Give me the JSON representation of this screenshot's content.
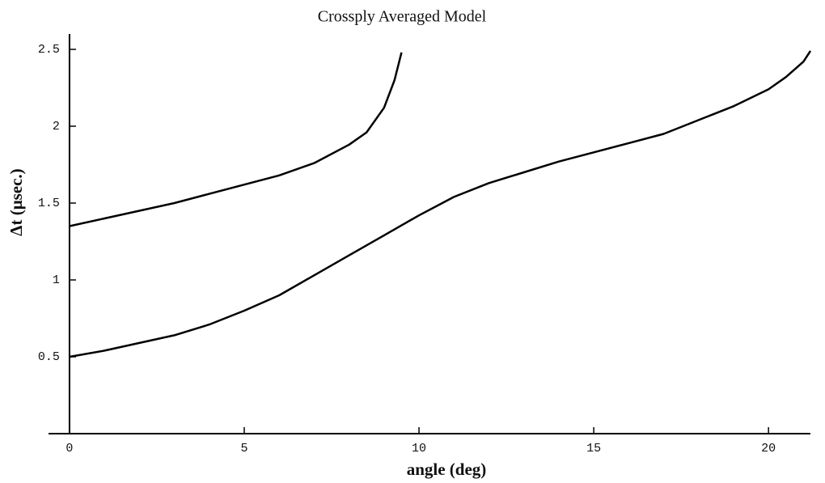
{
  "chart_data": {
    "type": "line",
    "title": "Crossply Averaged Model",
    "x_label": "angle (deg)",
    "y_label": "Δt (μsec.)",
    "xlim": [
      -0.6,
      21.2
    ],
    "ylim": [
      0,
      2.6
    ],
    "xticks": [
      0,
      5,
      10,
      15,
      20
    ],
    "yticks": [
      0.5,
      1,
      1.5,
      2,
      2.5
    ],
    "grid": false,
    "series": [
      {
        "color": "#000000",
        "x": [
          0,
          1,
          2,
          3,
          4,
          5,
          6,
          7,
          8,
          8.5,
          9,
          9.3,
          9.5
        ],
        "values": [
          1.35,
          1.4,
          1.45,
          1.5,
          1.56,
          1.62,
          1.68,
          1.76,
          1.88,
          1.96,
          2.12,
          2.3,
          2.48
        ]
      },
      {
        "color": "#000000",
        "x": [
          0,
          1,
          2,
          3,
          4,
          5,
          6,
          7,
          8,
          9,
          10,
          11,
          12,
          13,
          14,
          15,
          16,
          17,
          18,
          19,
          20,
          20.5,
          21,
          21.2
        ],
        "values": [
          0.5,
          0.54,
          0.59,
          0.64,
          0.71,
          0.8,
          0.9,
          1.03,
          1.16,
          1.29,
          1.42,
          1.54,
          1.63,
          1.7,
          1.77,
          1.83,
          1.89,
          1.95,
          2.04,
          2.13,
          2.24,
          2.32,
          2.42,
          2.49
        ]
      }
    ]
  }
}
